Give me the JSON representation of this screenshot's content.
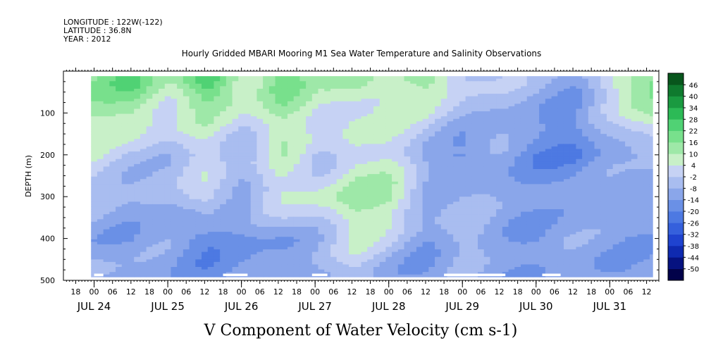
{
  "header": {
    "longitude": "LONGITUDE : 122W(-122)",
    "latitude": "LATITUDE : 36.8N",
    "year": "YEAR : 2012"
  },
  "chart_data": {
    "type": "heatmap",
    "title": "Hourly Gridded MBARI Mooring M1 Sea Water Temperature and Salinity Observations",
    "xlabel": "V Component of Water Velocity (cm s-1)",
    "ylabel": "DEPTH (m)",
    "xlim": [
      "2012-07-23T14:00",
      "2012-07-31T16:00"
    ],
    "data_extent": [
      "2012-07-23T23:00",
      "2012-07-31T14:00"
    ],
    "ylim": [
      500,
      0
    ],
    "y_ticks": [
      100,
      200,
      300,
      400,
      500
    ],
    "x_hour_labels": [
      "18",
      "00",
      "06",
      "12",
      "18",
      "00",
      "06",
      "12",
      "18",
      "00",
      "06",
      "12",
      "18",
      "00",
      "06",
      "12",
      "18",
      "00",
      "06",
      "12",
      "18",
      "00",
      "06",
      "12",
      "18",
      "00",
      "06",
      "12",
      "18",
      "00",
      "06",
      "12"
    ],
    "x_hour_values": [
      "2012-07-23T18:00",
      "2012-07-24T00:00",
      "2012-07-24T06:00",
      "2012-07-24T12:00",
      "2012-07-24T18:00",
      "2012-07-25T00:00",
      "2012-07-25T06:00",
      "2012-07-25T12:00",
      "2012-07-25T18:00",
      "2012-07-26T00:00",
      "2012-07-26T06:00",
      "2012-07-26T12:00",
      "2012-07-26T18:00",
      "2012-07-27T00:00",
      "2012-07-27T06:00",
      "2012-07-27T12:00",
      "2012-07-27T18:00",
      "2012-07-28T00:00",
      "2012-07-28T06:00",
      "2012-07-28T12:00",
      "2012-07-28T18:00",
      "2012-07-29T00:00",
      "2012-07-29T06:00",
      "2012-07-29T12:00",
      "2012-07-29T18:00",
      "2012-07-30T00:00",
      "2012-07-30T06:00",
      "2012-07-30T12:00",
      "2012-07-30T18:00",
      "2012-07-31T00:00",
      "2012-07-31T06:00",
      "2012-07-31T12:00"
    ],
    "x_day_labels": [
      "JUL 24",
      "JUL 25",
      "JUL 26",
      "JUL 27",
      "JUL 28",
      "JUL 29",
      "JUL 30",
      "JUL 31"
    ],
    "x_day_values": [
      "2012-07-24",
      "2012-07-25",
      "2012-07-26",
      "2012-07-27",
      "2012-07-28",
      "2012-07-29",
      "2012-07-30",
      "2012-07-31"
    ],
    "colorbar": {
      "levels": [
        -50,
        -44,
        -38,
        -32,
        -26,
        -20,
        -14,
        -8,
        -2,
        4,
        10,
        16,
        22,
        28,
        34,
        40,
        46
      ],
      "labels": [
        "46",
        "40",
        "34",
        "28",
        "22",
        "16",
        "10",
        "4",
        "-2",
        "-8",
        "-14",
        "-20",
        "-26",
        "-32",
        "-38",
        "-44",
        "-50"
      ],
      "colors": [
        "#02024a",
        "#061280",
        "#0f2ab0",
        "#1f43cf",
        "#3560dc",
        "#4d79e2",
        "#6a90e6",
        "#8aa6ea",
        "#a9bdf0",
        "#c6d2f4",
        "#c8f0c8",
        "#9ee8a8",
        "#78e08c",
        "#50d274",
        "#2cba56",
        "#1a9a40",
        "#0f7a2e",
        "#08561c"
      ]
    },
    "regime_note_free": true,
    "field_samples": {
      "depths": [
        25,
        100,
        200,
        300,
        400,
        475
      ],
      "times": [
        "2012-07-24T00:00",
        "2012-07-24T12:00",
        "2012-07-25T00:00",
        "2012-07-25T12:00",
        "2012-07-26T00:00",
        "2012-07-26T12:00",
        "2012-07-27T00:00",
        "2012-07-27T12:00",
        "2012-07-28T00:00",
        "2012-07-28T12:00",
        "2012-07-29T00:00",
        "2012-07-29T12:00",
        "2012-07-30T00:00",
        "2012-07-30T12:00",
        "2012-07-31T00:00",
        "2012-07-31T12:00"
      ],
      "values": [
        [
          14,
          24,
          10,
          26,
          8,
          22,
          6,
          14,
          8,
          12,
          2,
          -4,
          -8,
          -10,
          4,
          18
        ],
        [
          10,
          14,
          2,
          8,
          4,
          12,
          2,
          6,
          4,
          2,
          -6,
          -10,
          -12,
          -14,
          -4,
          12
        ],
        [
          2,
          -2,
          -8,
          2,
          -6,
          6,
          -4,
          6,
          2,
          -10,
          -16,
          -12,
          -18,
          -20,
          -12,
          -6
        ],
        [
          -4,
          -8,
          -10,
          4,
          -8,
          2,
          6,
          14,
          10,
          -6,
          -8,
          -12,
          -10,
          -14,
          -10,
          -8
        ],
        [
          -10,
          -14,
          -12,
          -18,
          -16,
          -14,
          -6,
          4,
          -2,
          -12,
          -6,
          -10,
          -14,
          -12,
          -10,
          -14
        ],
        [
          -6,
          -10,
          -12,
          -16,
          -14,
          -12,
          -8,
          -4,
          -10,
          -14,
          -10,
          -12,
          -14,
          -10,
          -12,
          -14
        ]
      ]
    },
    "missing_bottom_segments": [
      [
        "2012-07-24T00:00",
        "2012-07-24T03:00"
      ],
      [
        "2012-07-25T18:00",
        "2012-07-26T02:00"
      ],
      [
        "2012-07-26T23:00",
        "2012-07-27T04:00"
      ],
      [
        "2012-07-28T18:00",
        "2012-07-29T14:00"
      ],
      [
        "2012-07-30T02:00",
        "2012-07-30T08:00"
      ]
    ],
    "grid": false,
    "legend": "colorbar-right"
  }
}
